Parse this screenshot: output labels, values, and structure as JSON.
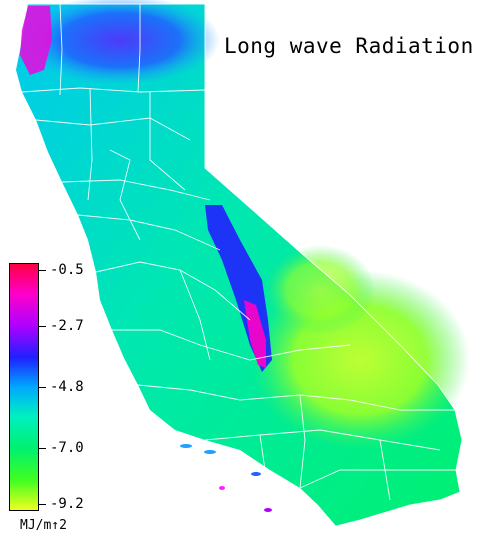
{
  "title": "Long wave Radiation",
  "legend": {
    "unit": "MJ/m↑2",
    "ticks": [
      "-0.5",
      "-2.7",
      "-4.8",
      "-7.0",
      "-9.2"
    ]
  },
  "colors": {
    "high": "#ff0044",
    "magenta": "#ff00c8",
    "blue": "#2020ff",
    "cyan": "#00c8ff",
    "green": "#00f070",
    "low": "#f0ff20",
    "boundary": "#ffffff"
  }
}
